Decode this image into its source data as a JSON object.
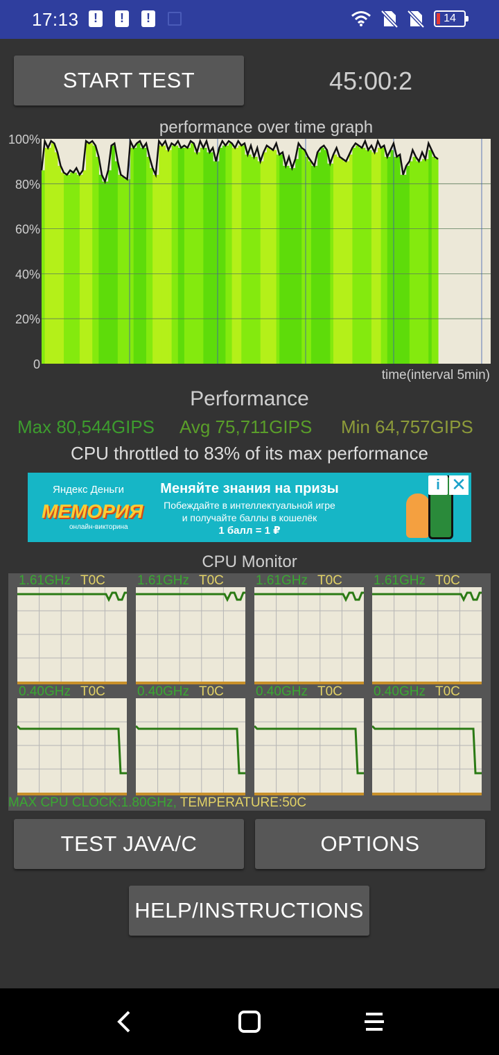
{
  "status_bar": {
    "time": "17:13",
    "battery_level": "14",
    "alert_icons": [
      "alert-icon",
      "alert-icon",
      "alert-icon"
    ],
    "right_icons": [
      "wifi-icon",
      "no-sim-icon",
      "no-sim-icon",
      "battery-icon"
    ]
  },
  "controls": {
    "start_test_label": "START TEST",
    "timer": "45:00:2"
  },
  "graph": {
    "title": "performance over time graph",
    "y_ticks": [
      "100%",
      "80%",
      "60%",
      "40%",
      "20%",
      "0"
    ],
    "x_label": "time(interval 5min)"
  },
  "chart_data": {
    "type": "area",
    "title": "performance over time graph",
    "xlabel": "time(interval 5min)",
    "ylabel": "",
    "ylim": [
      0,
      100
    ],
    "x_interval_minutes": 5,
    "grid": true,
    "values": [
      86,
      99,
      96,
      99,
      98,
      94,
      88,
      85,
      84,
      86,
      85,
      87,
      84,
      86,
      99,
      98,
      99,
      97,
      92,
      84,
      81,
      86,
      97,
      98,
      90,
      84,
      83,
      82,
      99,
      96,
      98,
      99,
      96,
      98,
      92,
      87,
      84,
      99,
      97,
      99,
      95,
      98,
      97,
      99,
      96,
      97,
      96,
      99,
      98,
      94,
      99,
      96,
      99,
      94,
      96,
      90,
      96,
      99,
      97,
      99,
      98,
      96,
      99,
      97,
      98,
      93,
      97,
      92,
      96,
      90,
      94,
      97,
      96,
      95,
      98,
      93,
      94,
      88,
      92,
      87,
      91,
      98,
      96,
      95,
      92,
      90,
      88,
      94,
      96,
      97,
      95,
      89,
      93,
      96,
      92,
      91,
      90,
      93,
      96,
      98,
      97,
      96,
      99,
      95,
      97,
      94,
      99,
      96,
      97,
      92,
      95,
      98,
      92,
      93,
      84,
      88,
      90,
      95,
      92,
      90,
      94,
      91,
      98,
      95,
      92,
      91
    ]
  },
  "performance": {
    "title": "Performance",
    "max": "Max 80,544GIPS",
    "avg": "Avg 75,711GIPS",
    "min": "Min 64,757GIPS",
    "throttle_text": "CPU throttled to 83% of its max performance",
    "colors": {
      "max": "#3d9c2e",
      "avg": "#5a9e2a",
      "min": "#8d9b3a"
    }
  },
  "ad": {
    "brand_small": "Яндекс Деньги",
    "brand_big": "МЕМОРИЯ",
    "brand_sub": "онлайн-викторина",
    "headline": "Меняйте знания на призы",
    "body_line1": "Побеждайте в интеллектуальной игре",
    "body_line2": "и получайте баллы в кошелёк",
    "rate": "1 балл = 1 ₽"
  },
  "cpu_monitor": {
    "title": "CPU Monitor",
    "cores": [
      {
        "freq": "1.61GHz",
        "temp": "T0C"
      },
      {
        "freq": "1.61GHz",
        "temp": "T0C"
      },
      {
        "freq": "1.61GHz",
        "temp": "T0C"
      },
      {
        "freq": "1.61GHz",
        "temp": "T0C"
      },
      {
        "freq": "0.40GHz",
        "temp": "T0C"
      },
      {
        "freq": "0.40GHz",
        "temp": "T0C"
      },
      {
        "freq": "0.40GHz",
        "temp": "T0C"
      },
      {
        "freq": "0.40GHz",
        "temp": "T0C"
      }
    ],
    "max_clock": "MAX CPU CLOCK:1.80GHz,",
    "temperature": "TEMPERATURE:50C"
  },
  "buttons": {
    "test_java_c": "TEST JAVA/C",
    "options": "OPTIONS",
    "help": "HELP/INSTRUCTIONS"
  },
  "nav": {
    "back": "back-icon",
    "home": "home-icon",
    "menu": "menu-icon"
  }
}
